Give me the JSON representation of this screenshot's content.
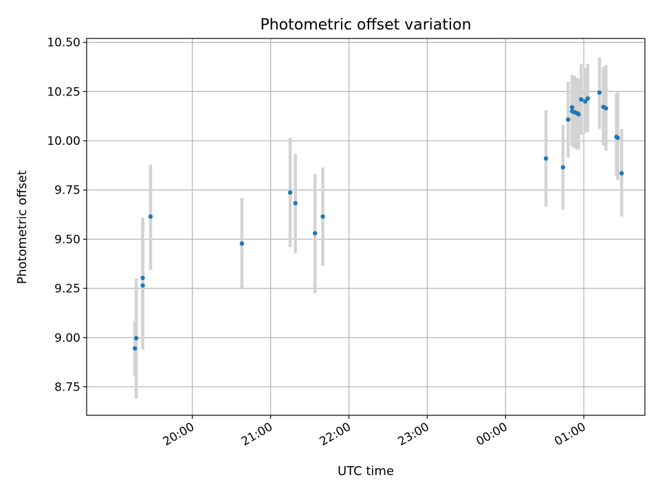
{
  "chart_data": {
    "type": "scatter",
    "title": "Photometric offset variation",
    "xlabel": "UTC time",
    "ylabel": "Photometric offset",
    "x_unit": "hours",
    "xlim": [
      18.65,
      25.78
    ],
    "ylim": [
      8.605,
      10.52
    ],
    "x_ticks": [
      {
        "value": 20,
        "label": "20:00"
      },
      {
        "value": 21,
        "label": "21:00"
      },
      {
        "value": 22,
        "label": "22:00"
      },
      {
        "value": 23,
        "label": "23:00"
      },
      {
        "value": 24,
        "label": "00:00"
      },
      {
        "value": 25,
        "label": "01:00"
      }
    ],
    "y_ticks": [
      {
        "value": 8.75,
        "label": "8.75"
      },
      {
        "value": 9.0,
        "label": "9.00"
      },
      {
        "value": 9.25,
        "label": "9.25"
      },
      {
        "value": 9.5,
        "label": "9.50"
      },
      {
        "value": 9.75,
        "label": "9.75"
      },
      {
        "value": 10.0,
        "label": "10.00"
      },
      {
        "value": 10.25,
        "label": "10.25"
      },
      {
        "value": 10.5,
        "label": "10.50"
      }
    ],
    "grid": true,
    "marker_color": "#1f77b4",
    "errorbar_color": "#d3d3d3",
    "series": [
      {
        "points": [
          {
            "x": "19:16",
            "y": 8.945,
            "err_low": 8.805,
            "err_high": 9.085
          },
          {
            "x": "19:17",
            "y": 8.997,
            "err_low": 8.69,
            "err_high": 9.3
          },
          {
            "x": "19:22",
            "y": 9.265,
            "err_low": 8.94,
            "err_high": 9.61
          },
          {
            "x": "19:22",
            "y": 9.303,
            "err_low": 9.0,
            "err_high": 9.6
          },
          {
            "x": "19:28",
            "y": 9.615,
            "err_low": 9.345,
            "err_high": 9.88
          },
          {
            "x": "20:38",
            "y": 9.478,
            "err_low": 9.245,
            "err_high": 9.71
          },
          {
            "x": "21:15",
            "y": 9.737,
            "err_low": 9.46,
            "err_high": 10.015
          },
          {
            "x": "21:19",
            "y": 9.683,
            "err_low": 9.43,
            "err_high": 9.935
          },
          {
            "x": "21:34",
            "y": 9.53,
            "err_low": 9.225,
            "err_high": 9.83
          },
          {
            "x": "21:40",
            "y": 9.615,
            "err_low": 9.365,
            "err_high": 9.865
          },
          {
            "x": "00:31",
            "y": 9.91,
            "err_low": 9.665,
            "err_high": 10.155
          },
          {
            "x": "00:44",
            "y": 9.865,
            "err_low": 9.65,
            "err_high": 10.08
          },
          {
            "x": "00:48",
            "y": 10.108,
            "err_low": 9.915,
            "err_high": 10.3
          },
          {
            "x": "00:51",
            "y": 10.17,
            "err_low": 9.98,
            "err_high": 10.335
          },
          {
            "x": "00:51",
            "y": 10.15,
            "err_low": 9.97,
            "err_high": 10.32
          },
          {
            "x": "00:53",
            "y": 10.145,
            "err_low": 9.96,
            "err_high": 10.33
          },
          {
            "x": "00:55",
            "y": 10.14,
            "err_low": 9.955,
            "err_high": 10.32
          },
          {
            "x": "00:56",
            "y": 10.135,
            "err_low": 9.955,
            "err_high": 10.315
          },
          {
            "x": "00:58",
            "y": 10.21,
            "err_low": 10.03,
            "err_high": 10.39
          },
          {
            "x": "01:01",
            "y": 10.2,
            "err_low": 10.04,
            "err_high": 10.37
          },
          {
            "x": "01:03",
            "y": 10.215,
            "err_low": 10.045,
            "err_high": 10.39
          },
          {
            "x": "01:12",
            "y": 10.245,
            "err_low": 10.06,
            "err_high": 10.425
          },
          {
            "x": "01:15",
            "y": 10.172,
            "err_low": 9.975,
            "err_high": 10.375
          },
          {
            "x": "01:17",
            "y": 10.165,
            "err_low": 9.95,
            "err_high": 10.385
          },
          {
            "x": "01:25",
            "y": 10.02,
            "err_low": 9.82,
            "err_high": 10.24
          },
          {
            "x": "01:26",
            "y": 10.015,
            "err_low": 9.8,
            "err_high": 10.245
          },
          {
            "x": "01:29",
            "y": 9.835,
            "err_low": 9.615,
            "err_high": 10.06
          }
        ]
      }
    ]
  }
}
